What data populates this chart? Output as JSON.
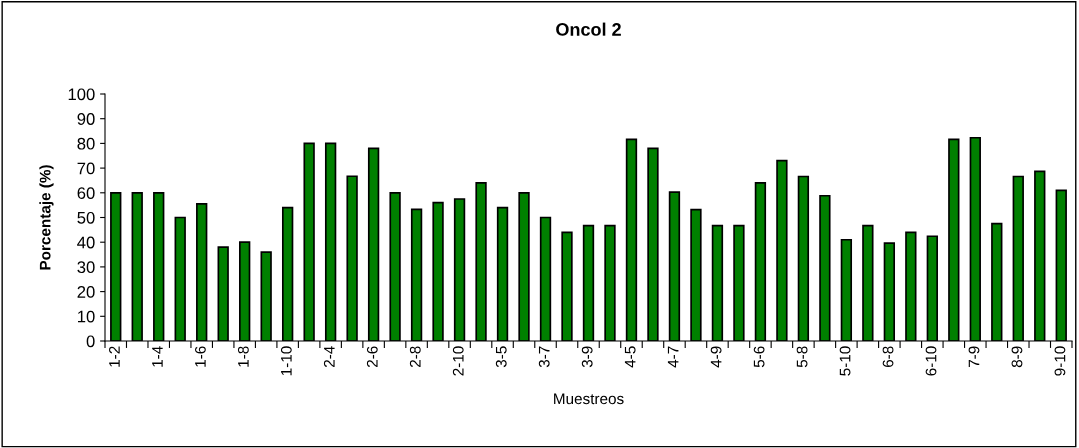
{
  "chart_data": {
    "type": "bar",
    "title": "Oncol 2",
    "xlabel": "Muestreos",
    "ylabel": "Porcentaje (%)",
    "categories": [
      "1-2",
      null,
      "1-4",
      null,
      "1-6",
      null,
      "1-8",
      null,
      "1-10",
      null,
      "2-4",
      null,
      "2-6",
      null,
      "2-8",
      null,
      "2-10",
      null,
      "3-5",
      null,
      "3-7",
      null,
      "3-9",
      null,
      "4-5",
      null,
      "4-7",
      null,
      "4-9",
      null,
      "5-6",
      null,
      "5-8",
      null,
      "5-10",
      null,
      "6-8",
      null,
      "6-10",
      null,
      "7-9",
      null,
      "8-9",
      null,
      "9-10"
    ],
    "values": [
      60,
      60,
      60,
      50,
      55.5,
      38,
      40,
      36,
      54,
      80,
      80,
      66.7,
      78,
      60,
      53.3,
      56,
      57.5,
      64,
      54,
      60,
      50,
      44,
      46.7,
      46.7,
      81.6,
      78,
      60.3,
      53.2,
      46.7,
      46.7,
      64,
      73,
      66.6,
      58.8,
      41,
      46.7,
      39.6,
      44,
      42.4,
      81.6,
      82.3,
      47.5,
      66.6,
      68.7,
      61
    ],
    "color": "#008000",
    "ylim": [
      0,
      100
    ],
    "yticks": [
      0,
      10,
      20,
      30,
      40,
      50,
      60,
      70,
      80,
      90,
      100
    ],
    "grid": false,
    "legend": false
  }
}
